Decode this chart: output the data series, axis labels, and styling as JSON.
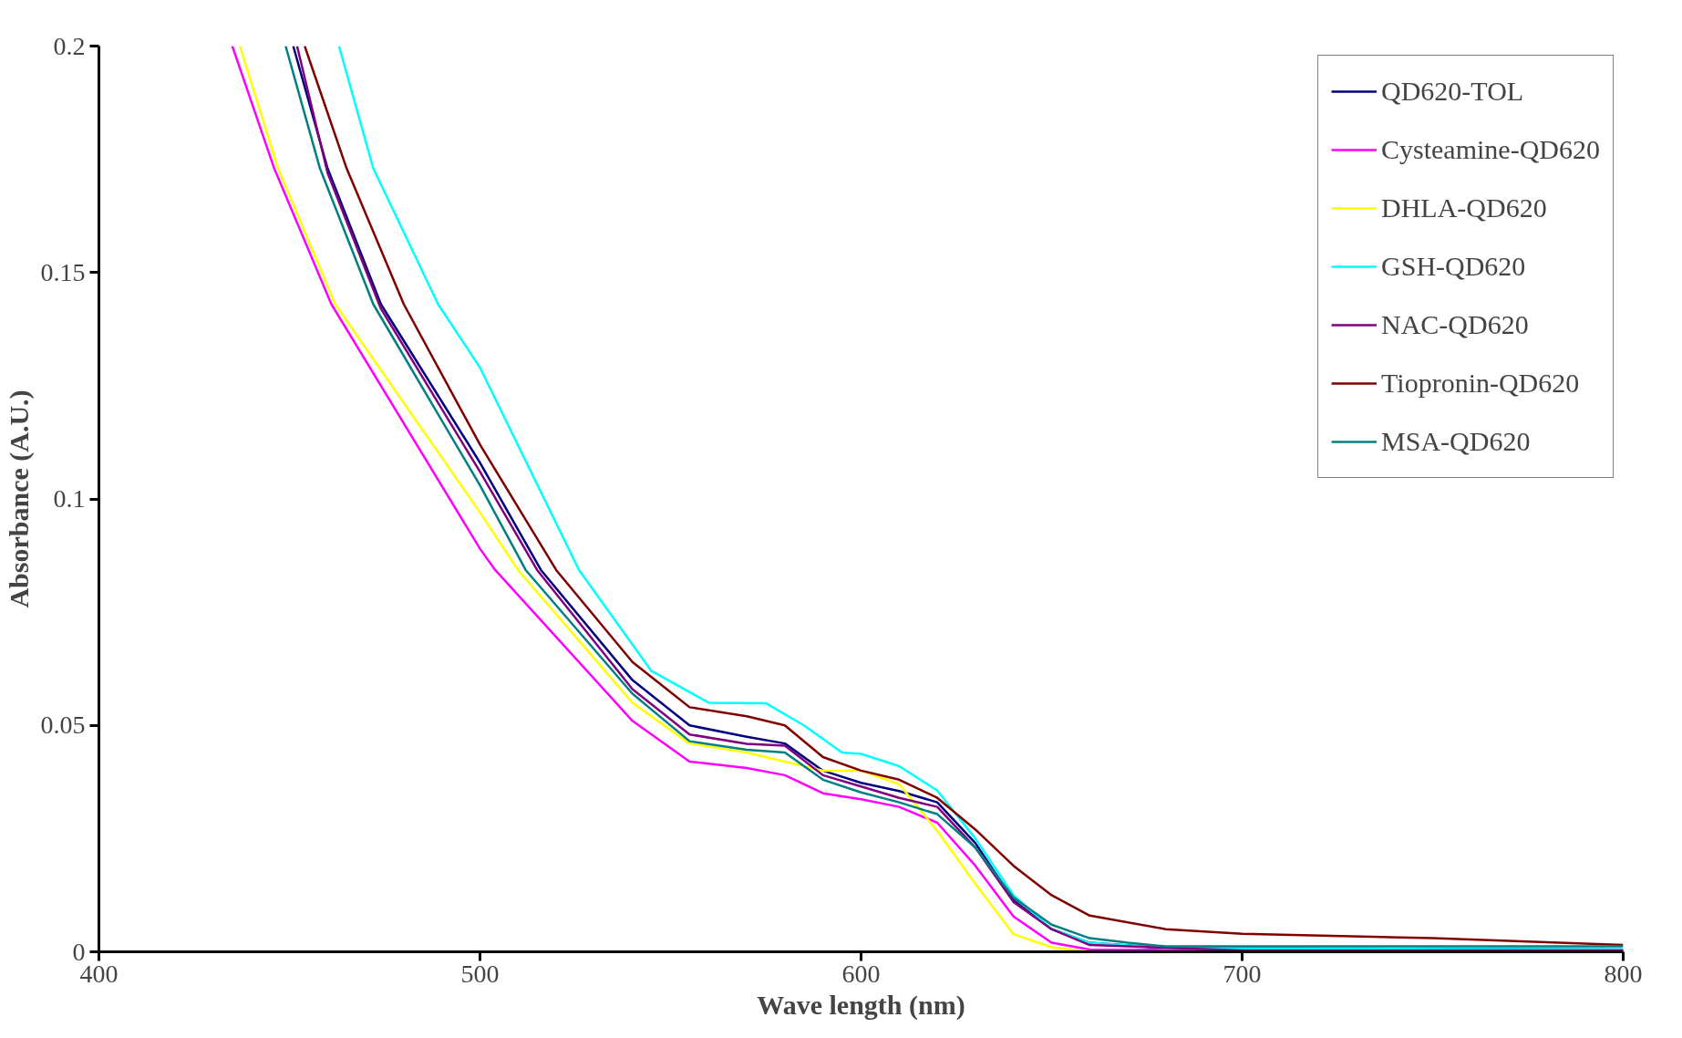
{
  "chart_data": {
    "type": "line",
    "xlabel": "Wave length (nm)",
    "ylabel": "Absorbance (A.U.)",
    "xlim": [
      400,
      800
    ],
    "ylim": [
      0,
      0.2
    ],
    "xticks": [
      400,
      500,
      600,
      700,
      800
    ],
    "yticks": [
      0,
      0.05,
      0.1,
      0.15,
      0.2
    ],
    "grid": false,
    "legend": "top right",
    "marker": "none",
    "line_style": "solid",
    "series": [
      {
        "name": "QD620-TOL",
        "color": "#000080",
        "x": [
          451,
          460,
          474,
          500,
          516,
          540,
          555,
          570,
          580,
          590,
          600,
          610,
          620,
          630,
          640,
          650,
          660,
          680,
          800
        ],
        "values": [
          0.2,
          0.173,
          0.143,
          0.108,
          0.0843,
          0.06,
          0.05,
          0.0475,
          0.046,
          0.04,
          0.0373,
          0.0355,
          0.033,
          0.024,
          0.0114,
          0.005,
          0.002,
          0.0008,
          0.0005
        ]
      },
      {
        "name": "Cysteamine-QD620",
        "color": "#ff00ff",
        "x": [
          435,
          446,
          461,
          500,
          504,
          540,
          555,
          570,
          580,
          590,
          600,
          610,
          620,
          630,
          640,
          650,
          660,
          800
        ],
        "values": [
          0.2,
          0.173,
          0.143,
          0.089,
          0.0843,
          0.051,
          0.042,
          0.0406,
          0.039,
          0.035,
          0.0337,
          0.032,
          0.0285,
          0.019,
          0.0078,
          0.002,
          0.0005,
          0.0003
        ]
      },
      {
        "name": "DHLA-QD620",
        "color": "#ffff00",
        "x": [
          437,
          447,
          462,
          500,
          510,
          540,
          555,
          570,
          580,
          590,
          600,
          610,
          620,
          630,
          640,
          650,
          660,
          800
        ],
        "values": [
          0.2,
          0.173,
          0.143,
          0.097,
          0.0843,
          0.055,
          0.046,
          0.044,
          0.042,
          0.04,
          0.04,
          0.037,
          0.0267,
          0.015,
          0.0039,
          0.001,
          0,
          0
        ]
      },
      {
        "name": "GSH-QD620",
        "color": "#00ffff",
        "x": [
          463,
          472,
          489,
          500,
          526,
          545,
          560,
          575,
          585,
          595,
          600,
          610,
          620,
          630,
          640,
          650,
          660,
          680,
          800
        ],
        "values": [
          0.2,
          0.173,
          0.143,
          0.129,
          0.0843,
          0.062,
          0.055,
          0.0549,
          0.05,
          0.044,
          0.0437,
          0.041,
          0.0356,
          0.025,
          0.0125,
          0.005,
          0.002,
          0.0008,
          0.0005
        ]
      },
      {
        "name": "NAC-QD620",
        "color": "#800080",
        "x": [
          452,
          460,
          474,
          500,
          515,
          540,
          555,
          570,
          580,
          590,
          600,
          610,
          620,
          630,
          640,
          650,
          660,
          700,
          800
        ],
        "values": [
          0.2,
          0.172,
          0.142,
          0.106,
          0.0843,
          0.058,
          0.048,
          0.0459,
          0.0455,
          0.039,
          0.0365,
          0.034,
          0.032,
          0.023,
          0.011,
          0.005,
          0.0015,
          0.0003,
          0.0003
        ]
      },
      {
        "name": "Tiopronin-QD620",
        "color": "#800000",
        "x": [
          454,
          465,
          480,
          500,
          520,
          540,
          555,
          570,
          580,
          590,
          600,
          610,
          620,
          630,
          640,
          650,
          660,
          680,
          700,
          750,
          800
        ],
        "values": [
          0.2,
          0.173,
          0.143,
          0.112,
          0.0843,
          0.064,
          0.054,
          0.052,
          0.05,
          0.043,
          0.04,
          0.038,
          0.034,
          0.027,
          0.019,
          0.0125,
          0.008,
          0.005,
          0.004,
          0.003,
          0.0015
        ]
      },
      {
        "name": "MSA-QD620",
        "color": "#008080",
        "x": [
          449,
          458,
          472,
          500,
          512,
          540,
          555,
          570,
          580,
          590,
          600,
          610,
          620,
          630,
          640,
          650,
          660,
          670,
          680,
          800
        ],
        "values": [
          0.2,
          0.173,
          0.143,
          0.103,
          0.0843,
          0.057,
          0.0465,
          0.0446,
          0.044,
          0.038,
          0.0352,
          0.033,
          0.0304,
          0.023,
          0.012,
          0.006,
          0.003,
          0.002,
          0.0012,
          0.0012
        ]
      }
    ]
  }
}
